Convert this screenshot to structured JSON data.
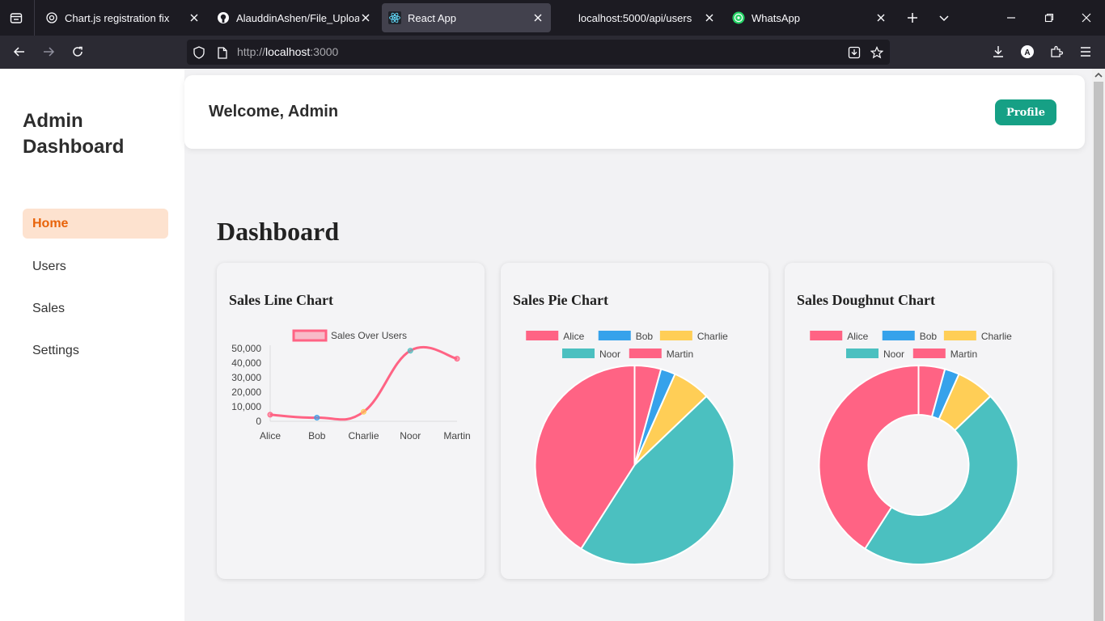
{
  "browser": {
    "tabs": [
      {
        "title": "Chart.js registration fix",
        "icon": "openai-icon",
        "active": false
      },
      {
        "title": "AlauddinAshen/File_Upload_N",
        "icon": "github-icon",
        "active": false
      },
      {
        "title": "React App",
        "icon": "react-icon",
        "active": true
      },
      {
        "title": "localhost:5000/api/users",
        "icon": "none",
        "active": false
      },
      {
        "title": "WhatsApp",
        "icon": "whatsapp-icon",
        "active": false
      }
    ],
    "url_prefix": "http://",
    "url_host": "localhost",
    "url_suffix": ":3000"
  },
  "sidebar": {
    "brand": "Admin Dashboard",
    "items": [
      {
        "label": "Home",
        "active": true
      },
      {
        "label": "Users",
        "active": false
      },
      {
        "label": "Sales",
        "active": false
      },
      {
        "label": "Settings",
        "active": false
      }
    ]
  },
  "header": {
    "welcome": "Welcome, Admin",
    "profile_label": "Profile"
  },
  "main": {
    "title": "Dashboard",
    "cards": [
      {
        "title": "Sales Line Chart"
      },
      {
        "title": "Sales Pie Chart"
      },
      {
        "title": "Sales Doughnut Chart"
      }
    ]
  },
  "colors": {
    "alice": "#ff6384",
    "bob": "#36a2eb",
    "charlie": "#ffce56",
    "noor": "#4bc0c0",
    "martin": "#ff6384",
    "accent": "#16a085",
    "active_nav": "#e8630a"
  },
  "chart_data": [
    {
      "type": "line",
      "title": "Sales Line Chart",
      "categories": [
        "Alice",
        "Bob",
        "Charlie",
        "Noor",
        "Martin"
      ],
      "series": [
        {
          "name": "Sales Over Users",
          "values": [
            4500,
            2500,
            6500,
            48500,
            43000
          ]
        }
      ],
      "yticks": [
        "0",
        "10,000",
        "20,000",
        "30,000",
        "40,000",
        "50,000"
      ],
      "ylim": [
        0,
        50000
      ],
      "grid": false,
      "legend": "top"
    },
    {
      "type": "pie",
      "title": "Sales Pie Chart",
      "categories": [
        "Alice",
        "Bob",
        "Charlie",
        "Noor",
        "Martin"
      ],
      "values": [
        4500,
        2500,
        6500,
        48500,
        43000
      ],
      "legend": "top"
    },
    {
      "type": "pie",
      "subtype": "doughnut",
      "title": "Sales Doughnut Chart",
      "categories": [
        "Alice",
        "Bob",
        "Charlie",
        "Noor",
        "Martin"
      ],
      "values": [
        4500,
        2500,
        6500,
        48500,
        43000
      ],
      "legend": "top"
    }
  ]
}
